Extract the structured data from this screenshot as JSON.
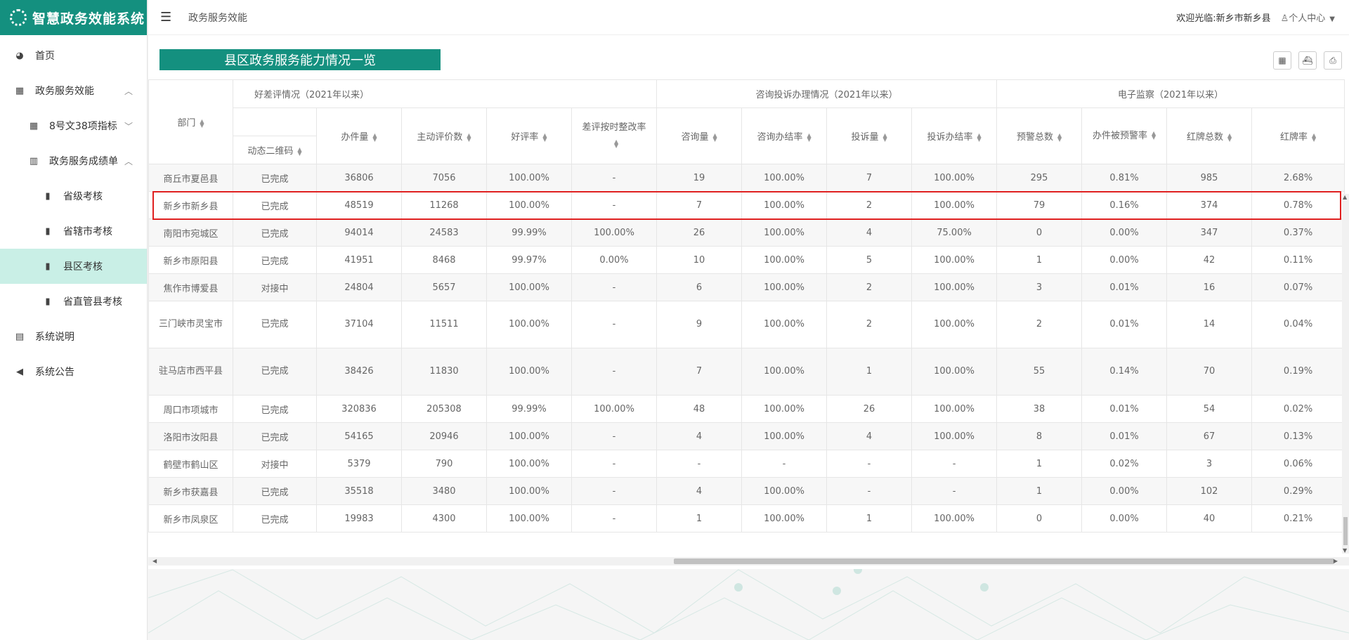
{
  "app": {
    "logo_text": "智慧政务效能系统"
  },
  "sidebar": {
    "items": [
      {
        "label": "首页",
        "icon": "dashboard-icon"
      },
      {
        "label": "政务服务效能",
        "icon": "calendar-icon",
        "chevron": "^"
      },
      {
        "label": "8号文38项指标",
        "icon": "calendar-icon",
        "chevron": "v"
      },
      {
        "label": "政务服务成绩单",
        "icon": "chart-icon",
        "chevron": "^"
      },
      {
        "label": "省级考核",
        "icon": "bar-chart-icon"
      },
      {
        "label": "省辖市考核",
        "icon": "bar-chart-icon"
      },
      {
        "label": "县区考核",
        "icon": "bar-chart-icon"
      },
      {
        "label": "省直管县考核",
        "icon": "bar-chart-icon"
      },
      {
        "label": "系统说明",
        "icon": "document-icon"
      },
      {
        "label": "系统公告",
        "icon": "speaker-icon"
      }
    ]
  },
  "header": {
    "breadcrumb": "政务服务效能",
    "welcome": "欢迎光临:新乡市新乡县",
    "user_center": "个人中心"
  },
  "panel": {
    "title": "县区政务服务能力情况一览"
  },
  "table": {
    "group_headers": {
      "dept": "部门",
      "feedback": "好差评情况（2021年以来）",
      "complaints": "咨询投诉办理情况（2021年以来）",
      "supervision": "电子监察（2021年以来）"
    },
    "qr_header": "动态二维码",
    "columns": {
      "c1": "办件量",
      "c2": "主动评价数",
      "c3": "好评率",
      "c4": "差评按时整改率",
      "c5": "咨询量",
      "c6": "咨询办结率",
      "c7": "投诉量",
      "c8": "投诉办结率",
      "c9": "预警总数",
      "c10": "办件被预警率",
      "c11": "红牌总数",
      "c12": "红牌率"
    },
    "rows": [
      [
        "商丘市夏邑县",
        "已完成",
        "36806",
        "7056",
        "100.00%",
        "-",
        "19",
        "100.00%",
        "7",
        "100.00%",
        "295",
        "0.81%",
        "985",
        "2.68%"
      ],
      [
        "新乡市新乡县",
        "已完成",
        "48519",
        "11268",
        "100.00%",
        "-",
        "7",
        "100.00%",
        "2",
        "100.00%",
        "79",
        "0.16%",
        "374",
        "0.78%"
      ],
      [
        "南阳市宛城区",
        "已完成",
        "94014",
        "24583",
        "99.99%",
        "100.00%",
        "26",
        "100.00%",
        "4",
        "75.00%",
        "0",
        "0.00%",
        "347",
        "0.37%"
      ],
      [
        "新乡市原阳县",
        "已完成",
        "41951",
        "8468",
        "99.97%",
        "0.00%",
        "10",
        "100.00%",
        "5",
        "100.00%",
        "1",
        "0.00%",
        "42",
        "0.11%"
      ],
      [
        "焦作市博爱县",
        "对接中",
        "24804",
        "5657",
        "100.00%",
        "-",
        "6",
        "100.00%",
        "2",
        "100.00%",
        "3",
        "0.01%",
        "16",
        "0.07%"
      ],
      [
        "三门峡市灵宝市",
        "已完成",
        "37104",
        "11511",
        "100.00%",
        "-",
        "9",
        "100.00%",
        "2",
        "100.00%",
        "2",
        "0.01%",
        "14",
        "0.04%"
      ],
      [
        "驻马店市西平县",
        "已完成",
        "38426",
        "11830",
        "100.00%",
        "-",
        "7",
        "100.00%",
        "1",
        "100.00%",
        "55",
        "0.14%",
        "70",
        "0.19%"
      ],
      [
        "周口市项城市",
        "已完成",
        "320836",
        "205308",
        "99.99%",
        "100.00%",
        "48",
        "100.00%",
        "26",
        "100.00%",
        "38",
        "0.01%",
        "54",
        "0.02%"
      ],
      [
        "洛阳市汝阳县",
        "已完成",
        "54165",
        "20946",
        "100.00%",
        "-",
        "4",
        "100.00%",
        "4",
        "100.00%",
        "8",
        "0.01%",
        "67",
        "0.13%"
      ],
      [
        "鹤壁市鹤山区",
        "对接中",
        "5379",
        "790",
        "100.00%",
        "-",
        "-",
        "-",
        "-",
        "-",
        "1",
        "0.02%",
        "3",
        "0.06%"
      ],
      [
        "新乡市获嘉县",
        "已完成",
        "35518",
        "3480",
        "100.00%",
        "-",
        "4",
        "100.00%",
        "-",
        "-",
        "1",
        "0.00%",
        "102",
        "0.29%"
      ],
      [
        "新乡市凤泉区",
        "已完成",
        "19983",
        "4300",
        "100.00%",
        "-",
        "1",
        "100.00%",
        "1",
        "100.00%",
        "0",
        "0.00%",
        "40",
        "0.21%"
      ]
    ],
    "tall_rows": [
      5,
      6
    ],
    "highlighted_row": 1
  },
  "colors": {
    "accent": "#14907f",
    "active_nav": "#c9efe6",
    "highlight": "#e02020"
  }
}
